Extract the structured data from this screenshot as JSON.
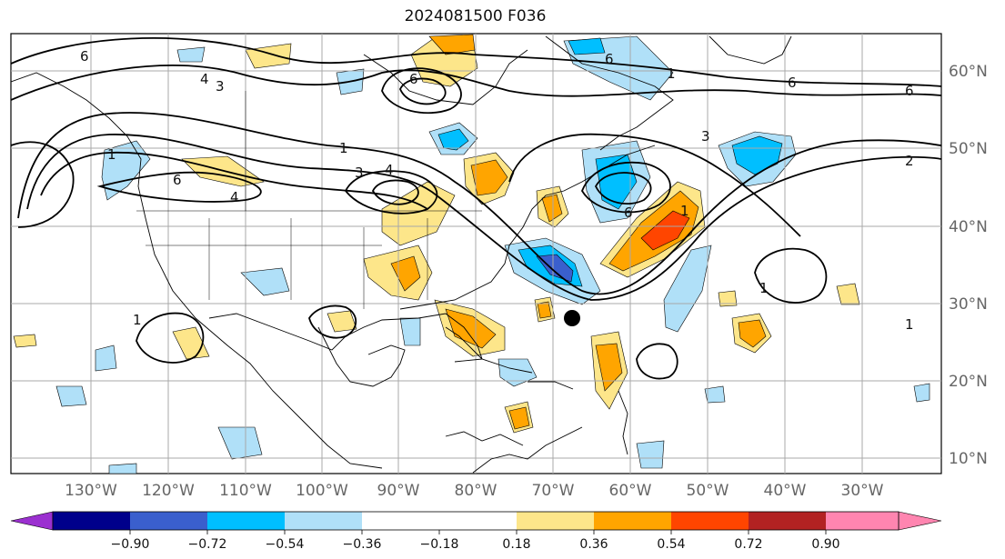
{
  "title": "2024081500 F036",
  "longitude_labels": [
    "130°W",
    "120°W",
    "110°W",
    "100°W",
    "90°W",
    "80°W",
    "70°W",
    "60°W",
    "50°W",
    "40°W",
    "30°W"
  ],
  "latitude_labels": [
    "60°N",
    "50°N",
    "40°N",
    "30°N",
    "20°N",
    "10°N"
  ],
  "colorbar": {
    "tick_labels": [
      "−0.90",
      "−0.72",
      "−0.54",
      "−0.36",
      "−0.18",
      "0.18",
      "0.36",
      "0.54",
      "0.72",
      "0.90"
    ],
    "colors": [
      "#9b30d0",
      "#00008b",
      "#3a5fcd",
      "#00bfff",
      "#b0e0f8",
      "#ffffff",
      "#fde68a",
      "#ffa500",
      "#ff4500",
      "#b22222",
      "#ff85b0"
    ]
  },
  "contour_labels": [
    "6",
    "4",
    "3",
    "1",
    "6",
    "4",
    "1",
    "6",
    "4",
    "3",
    "6",
    "6",
    "1",
    "3",
    "6",
    "1",
    "1",
    "1",
    "2",
    "6",
    "1"
  ],
  "storm_marker": "center"
}
